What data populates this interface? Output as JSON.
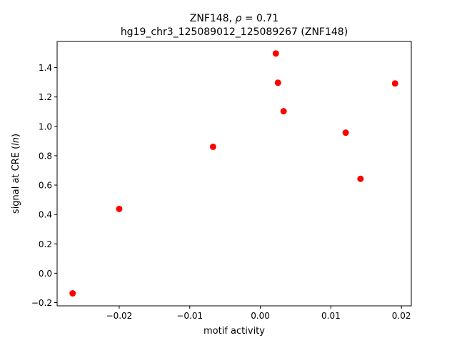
{
  "chart_data": {
    "type": "scatter",
    "title_line1": "ZNF148, ",
    "title_rho_symbol": "ρ",
    "title_rho_value": " = 0.71",
    "title_line2": "hg19_chr3_125089012_125089267 (ZNF148)",
    "xlabel": "motif activity",
    "ylabel_prefix": "signal at CRE (",
    "ylabel_italic": "ln",
    "ylabel_suffix": ")",
    "xlim": [
      -0.0288,
      0.0214
    ],
    "ylim": [
      -0.222,
      1.578
    ],
    "xticks": [
      -0.02,
      -0.01,
      0.0,
      0.01,
      0.02
    ],
    "xtick_labels": [
      "−0.02",
      "−0.01",
      "0.00",
      "0.01",
      "0.02"
    ],
    "yticks": [
      -0.2,
      0.0,
      0.2,
      0.4,
      0.6,
      0.8,
      1.0,
      1.2,
      1.4
    ],
    "ytick_labels": [
      "−0.2",
      "0.0",
      "0.2",
      "0.4",
      "0.6",
      "0.8",
      "1.0",
      "1.2",
      "1.4"
    ],
    "marker_color": "#ff0000",
    "grid": false,
    "points": [
      {
        "x": -0.0266,
        "y": -0.137
      },
      {
        "x": -0.02,
        "y": 0.438
      },
      {
        "x": -0.0067,
        "y": 0.861
      },
      {
        "x": 0.0022,
        "y": 1.496
      },
      {
        "x": 0.0025,
        "y": 1.297
      },
      {
        "x": 0.0033,
        "y": 1.103
      },
      {
        "x": 0.0121,
        "y": 0.957
      },
      {
        "x": 0.0142,
        "y": 0.643
      },
      {
        "x": 0.0191,
        "y": 1.292
      }
    ]
  }
}
